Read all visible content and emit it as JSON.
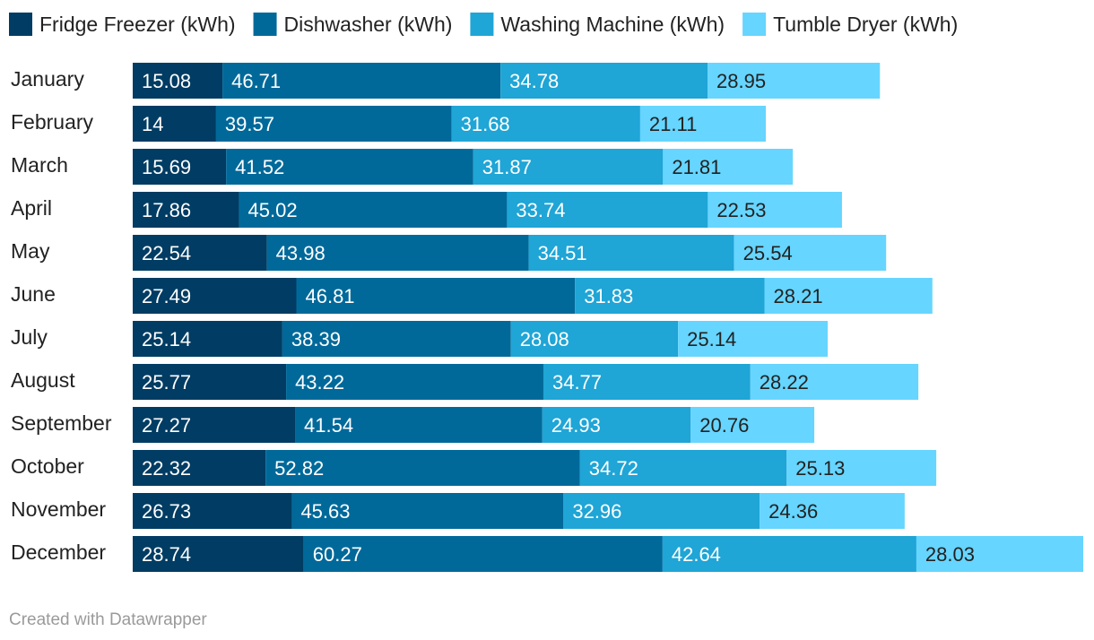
{
  "colors": {
    "fridge_freezer": "#003c63",
    "dishwasher": "#00699a",
    "washing_machine": "#1fa5d6",
    "tumble_dryer": "#66d5ff",
    "label_on_dark": "#ffffff",
    "label_on_light": "#222222"
  },
  "chart_data": {
    "type": "bar",
    "orientation": "horizontal",
    "stacked": true,
    "title": "",
    "xlabel": "",
    "ylabel": "",
    "legend_position": "top",
    "grid": false,
    "categories": [
      "January",
      "February",
      "March",
      "April",
      "May",
      "June",
      "July",
      "August",
      "September",
      "October",
      "November",
      "December"
    ],
    "series": [
      {
        "name": "Fridge Freezer (kWh)",
        "values": [
          15.08,
          14,
          15.69,
          17.86,
          22.54,
          27.49,
          25.14,
          25.77,
          27.27,
          22.32,
          26.73,
          28.74
        ]
      },
      {
        "name": "Dishwasher (kWh)",
        "values": [
          46.71,
          39.57,
          41.52,
          45.02,
          43.98,
          46.81,
          38.39,
          43.22,
          41.54,
          52.82,
          45.63,
          60.27
        ]
      },
      {
        "name": "Washing Machine (kWh)",
        "values": [
          34.78,
          31.68,
          31.87,
          33.74,
          34.51,
          31.83,
          28.08,
          34.77,
          24.93,
          34.72,
          32.96,
          42.64
        ]
      },
      {
        "name": "Tumble Dryer (kWh)",
        "values": [
          28.95,
          21.11,
          21.81,
          22.53,
          25.54,
          28.21,
          25.14,
          28.22,
          20.76,
          25.13,
          24.36,
          28.03
        ]
      }
    ]
  },
  "credit": "Created with Datawrapper"
}
